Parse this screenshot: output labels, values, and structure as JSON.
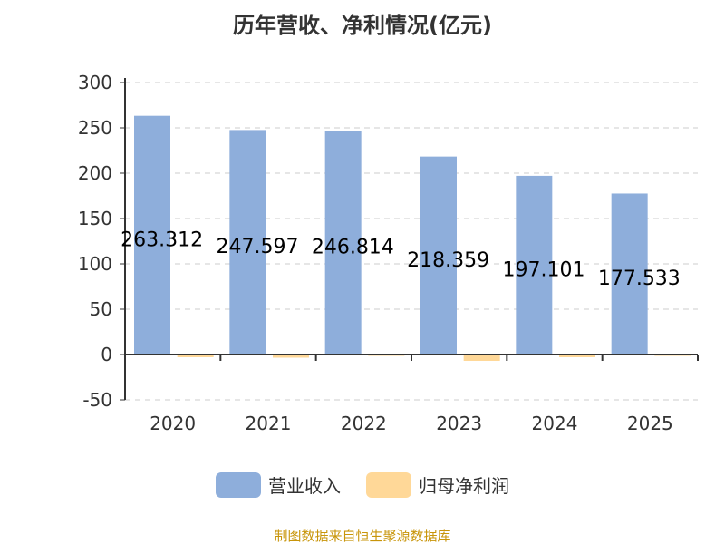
{
  "chart_data": {
    "type": "bar",
    "title": "历年营收、净利情况(亿元)",
    "categories": [
      "2020",
      "2021",
      "2022",
      "2023",
      "2024",
      "2025"
    ],
    "series": [
      {
        "name": "营业收入",
        "color": "#8eaedb",
        "values": [
          263.312,
          247.597,
          246.814,
          218.359,
          197.101,
          177.533
        ],
        "labels": [
          "263.312",
          "247.597",
          "246.814",
          "218.359",
          "197.101",
          "177.533"
        ]
      },
      {
        "name": "归母净利润",
        "color": "#ffd898",
        "values": [
          -3,
          -3.5,
          -1,
          -7,
          -3,
          -1
        ]
      }
    ],
    "ylim": [
      -50,
      300
    ],
    "yticks": [
      -50,
      0,
      50,
      100,
      150,
      200,
      250,
      300
    ],
    "grid": true,
    "legend": "bottom"
  },
  "source": "制图数据来自恒生聚源数据库"
}
